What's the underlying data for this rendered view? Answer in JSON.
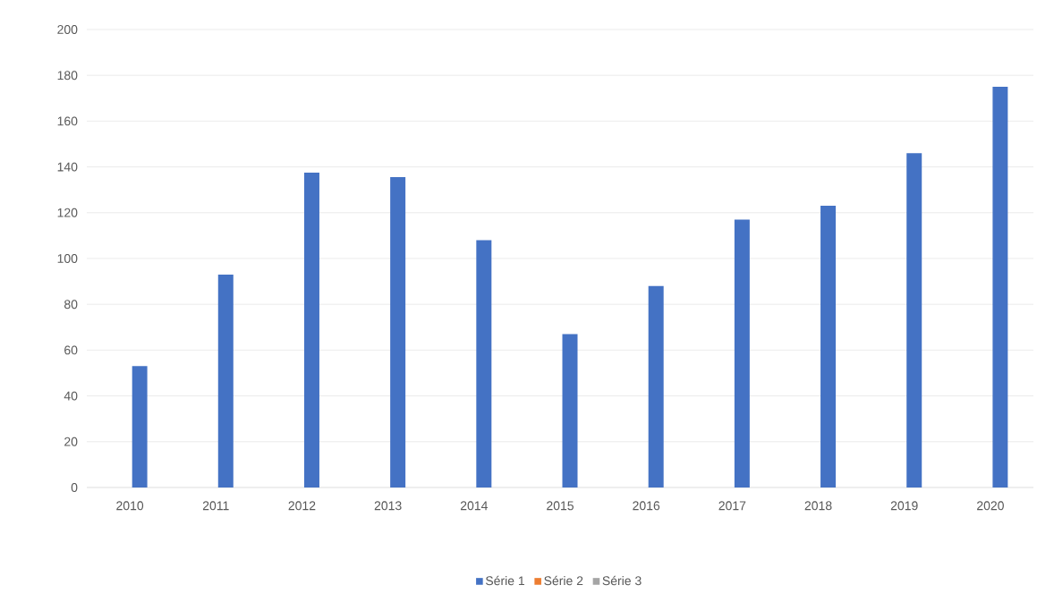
{
  "chart_data": {
    "type": "bar",
    "categories": [
      "2010",
      "2011",
      "2012",
      "2013",
      "2014",
      "2015",
      "2016",
      "2017",
      "2018",
      "2019",
      "2020"
    ],
    "series": [
      {
        "name": "Série 1",
        "color": "#4472c4",
        "values": [
          53,
          93,
          137.5,
          135.5,
          108,
          67,
          88,
          117,
          123,
          146,
          175
        ]
      },
      {
        "name": "Série 2",
        "color": "#ed7d31",
        "values": [
          null,
          null,
          null,
          null,
          null,
          null,
          null,
          null,
          null,
          null,
          null
        ]
      },
      {
        "name": "Série 3",
        "color": "#a5a5a5",
        "values": [
          null,
          null,
          null,
          null,
          null,
          null,
          null,
          null,
          null,
          null,
          null
        ]
      }
    ],
    "ylim": [
      0,
      200
    ],
    "yticks": [
      0,
      20,
      40,
      60,
      80,
      100,
      120,
      140,
      160,
      180,
      200
    ],
    "grid": "y",
    "legend": "bottom"
  }
}
